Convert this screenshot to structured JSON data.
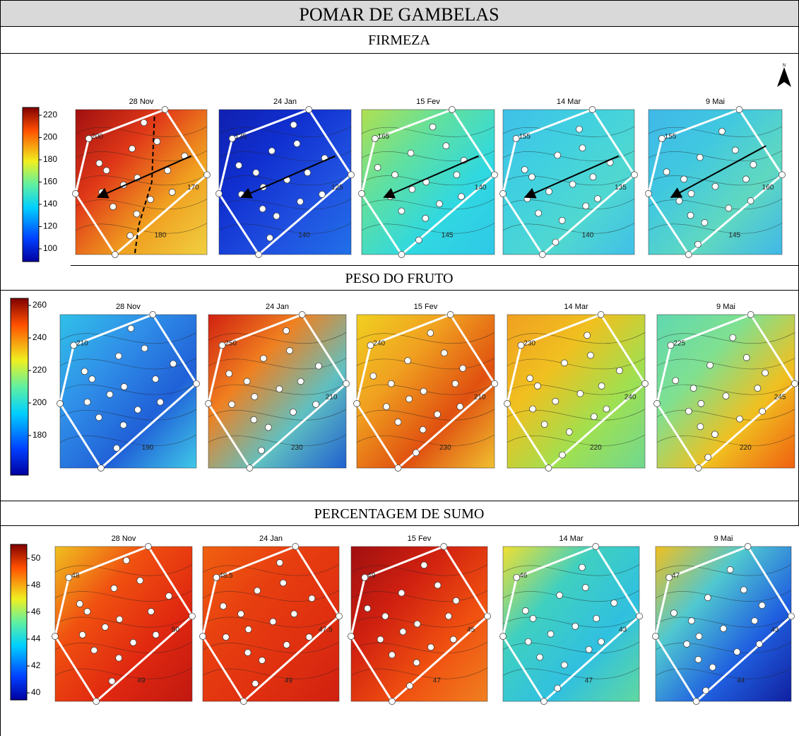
{
  "title": "POMAR DE GAMBELAS",
  "sections": [
    {
      "title": "FIRMEZA",
      "scale": [
        "220",
        "200",
        "180",
        "160",
        "140",
        "120",
        "100"
      ],
      "panels": [
        {
          "date": "28 Nov",
          "labels": [
            "200",
            "180",
            "170"
          ]
        },
        {
          "date": "24 Jan",
          "labels": [
            "135",
            "140",
            "125"
          ]
        },
        {
          "date": "15 Fev",
          "labels": [
            "165",
            "145",
            "140"
          ]
        },
        {
          "date": "14 Mar",
          "labels": [
            "155",
            "140",
            "135"
          ]
        },
        {
          "date": "9 Mai",
          "labels": [
            "155",
            "145",
            "160"
          ]
        }
      ]
    },
    {
      "title": "PESO DO FRUTO",
      "scale": [
        "260",
        "240",
        "220",
        "200",
        "180"
      ],
      "panels": [
        {
          "date": "28 Nov",
          "labels": [
            "210",
            "190"
          ]
        },
        {
          "date": "24 Jan",
          "labels": [
            "250",
            "230",
            "210"
          ]
        },
        {
          "date": "15 Fev",
          "labels": [
            "240",
            "230",
            "210"
          ]
        },
        {
          "date": "14 Mar",
          "labels": [
            "230",
            "220",
            "240"
          ]
        },
        {
          "date": "9 Mai",
          "labels": [
            "225",
            "220",
            "245"
          ]
        }
      ]
    },
    {
      "title": "PERCENTAGEM DE SUMO",
      "scale": [
        "50",
        "48",
        "46",
        "44",
        "42",
        "40"
      ],
      "panels": [
        {
          "date": "28 Nov",
          "labels": [
            "48",
            "49",
            "50"
          ]
        },
        {
          "date": "24 Jan",
          "labels": [
            "48.5",
            "49",
            "47.5"
          ]
        },
        {
          "date": "15 Fev",
          "labels": [
            "49",
            "47",
            "45"
          ]
        },
        {
          "date": "14 Mar",
          "labels": [
            "46",
            "47",
            "43"
          ]
        },
        {
          "date": "9 Mai",
          "labels": [
            "47",
            "44",
            "43"
          ]
        }
      ]
    }
  ]
}
